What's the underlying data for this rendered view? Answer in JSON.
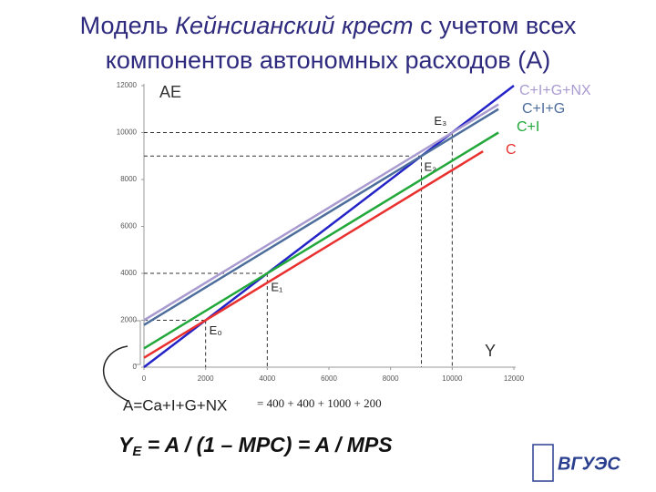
{
  "chart_data": {
    "type": "line",
    "title": [
      "Модель ",
      "Кейнсианский крест",
      " с учетом всех",
      "компонентов автономных расходов (A)"
    ],
    "y_label": "AE",
    "x_label": "Y",
    "xlim": [
      0,
      12000
    ],
    "ylim": [
      0,
      12000
    ],
    "xticks": [
      0,
      2000,
      4000,
      6000,
      8000,
      10000,
      12000
    ],
    "yticks": [
      0,
      2000,
      4000,
      6000,
      8000,
      10000,
      12000
    ],
    "series": [
      {
        "color": "#2323c8",
        "x": [
          0,
          12000
        ],
        "values": [
          0,
          12000
        ]
      },
      {
        "name": "C+I+G+NX",
        "color": "#a99bd0",
        "x": [
          0,
          11500
        ],
        "values": [
          2000,
          11200
        ]
      },
      {
        "name": "C+I+G",
        "color": "#4d6e9c",
        "x": [
          0,
          11500
        ],
        "values": [
          1800,
          11000
        ]
      },
      {
        "name": "C+I",
        "color": "#22a83a",
        "x": [
          0,
          11500
        ],
        "values": [
          800,
          10000
        ]
      },
      {
        "name": "C",
        "color": "#e8312f",
        "x": [
          0,
          11000
        ],
        "values": [
          400,
          9200
        ]
      }
    ],
    "points": [
      {
        "label": "E₀",
        "x": 2000,
        "y": 2000
      },
      {
        "label": "E₁",
        "x": 4000,
        "y": 4000
      },
      {
        "label": "E₂",
        "x": 9000,
        "y": 9000
      },
      {
        "label": "E₃",
        "x": 10000,
        "y": 10000
      }
    ],
    "formula_a": "A=Ca+I+G+NX",
    "formula_sum": "= 400 + 400 + 1000 + 200",
    "formula_main": {
      "y": "Y",
      "sub": "E",
      "rest": " = A / (1 – MPC) = A / MPS"
    },
    "logo": "ВГУЭС"
  }
}
